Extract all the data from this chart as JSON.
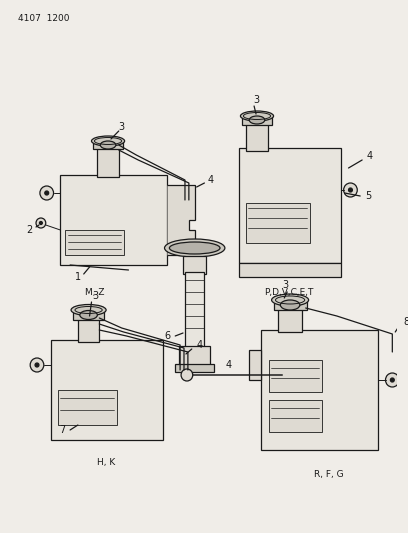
{
  "title_code": "4107  1200",
  "bg_color": "#f0ede8",
  "line_color": "#1a1a1a",
  "text_color": "#1a1a1a",
  "lw": 0.9,
  "labels": {
    "mz": "M, Z",
    "pdvcet": "P,D,V,C,E,T",
    "hk": "H, K",
    "rfg": "R, F, G"
  }
}
